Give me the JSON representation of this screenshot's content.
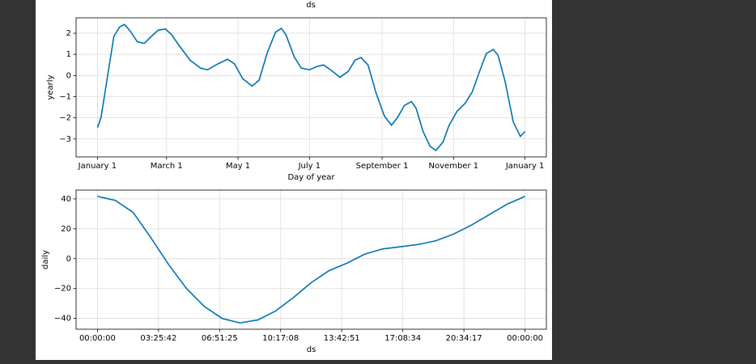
{
  "above": {
    "xlabel": "ds"
  },
  "chart_data": [
    {
      "type": "line",
      "xlabel": "Day of year",
      "ylabel": "yearly",
      "grid": true,
      "color": "#0072b2",
      "x": [
        0,
        3,
        9,
        14,
        19,
        23,
        28,
        34,
        40,
        46,
        52,
        58,
        63,
        70,
        79,
        88,
        94,
        101,
        111,
        117,
        124,
        132,
        138,
        145,
        152,
        157,
        161,
        168,
        174,
        181,
        187,
        193,
        200,
        207,
        214,
        220,
        225,
        231,
        238,
        245,
        251,
        256,
        262,
        268,
        272,
        278,
        284,
        289,
        295,
        300,
        307,
        314,
        320,
        327,
        332,
        338,
        342,
        348,
        355,
        361,
        365
      ],
      "values": [
        -2.46,
        -2.0,
        0.1,
        1.85,
        2.3,
        2.42,
        2.1,
        1.6,
        1.52,
        1.85,
        2.15,
        2.2,
        1.95,
        1.4,
        0.73,
        0.35,
        0.27,
        0.5,
        0.77,
        0.55,
        -0.15,
        -0.5,
        -0.22,
        1.08,
        2.05,
        2.23,
        1.92,
        0.88,
        0.35,
        0.27,
        0.42,
        0.5,
        0.23,
        -0.08,
        0.19,
        0.73,
        0.85,
        0.5,
        -0.85,
        -1.92,
        -2.35,
        -2.0,
        -1.42,
        -1.23,
        -1.54,
        -2.65,
        -3.35,
        -3.54,
        -3.15,
        -2.38,
        -1.69,
        -1.31,
        -0.77,
        0.31,
        1.04,
        1.23,
        0.96,
        -0.27,
        -2.19,
        -2.88,
        -2.65
      ],
      "xlim": [
        -18.25,
        383.25
      ],
      "xticks": [
        {
          "value": 0,
          "label": "January 1"
        },
        {
          "value": 59,
          "label": "March 1"
        },
        {
          "value": 120,
          "label": "May 1"
        },
        {
          "value": 181,
          "label": "July 1"
        },
        {
          "value": 243,
          "label": "September 1"
        },
        {
          "value": 304,
          "label": "November 1"
        },
        {
          "value": 365,
          "label": "January 1"
        }
      ],
      "ylim": [
        -3.85,
        2.73
      ],
      "yticks": [
        {
          "value": -3,
          "label": "−3"
        },
        {
          "value": -2,
          "label": "−2"
        },
        {
          "value": -1,
          "label": "−1"
        },
        0,
        1,
        2
      ]
    },
    {
      "type": "line",
      "xlabel": "ds",
      "ylabel": "daily",
      "grid": true,
      "color": "#0072b2",
      "x": [
        0,
        1,
        2,
        3,
        4,
        5,
        6,
        7,
        8,
        9,
        10,
        11,
        12,
        13,
        14,
        15,
        16,
        17,
        18,
        19,
        20,
        21,
        22,
        23,
        24
      ],
      "values": [
        41.7,
        39,
        31,
        14,
        -4,
        -20,
        -32,
        -40,
        -43,
        -41,
        -35,
        -26,
        -16,
        -8,
        -3,
        3,
        6.5,
        8,
        9.5,
        12,
        16.5,
        22.5,
        29.5,
        36.5,
        41.7
      ],
      "xlim": [
        -1.2,
        25.2
      ],
      "xticks": [
        {
          "value": 0,
          "label": "00:00:00"
        },
        {
          "value": 3.4283,
          "label": "03:25:42"
        },
        {
          "value": 6.8569,
          "label": "06:51:25"
        },
        {
          "value": 10.2856,
          "label": "10:17:08"
        },
        {
          "value": 13.7142,
          "label": "13:42:51"
        },
        {
          "value": 17.1428,
          "label": "17:08:34"
        },
        {
          "value": 20.5714,
          "label": "20:34:17"
        },
        {
          "value": 24,
          "label": "00:00:00"
        }
      ],
      "ylim": [
        -47.2,
        45.9
      ],
      "yticks": [
        {
          "value": -40,
          "label": "−40"
        },
        {
          "value": -20,
          "label": "−20"
        },
        0,
        20,
        40
      ]
    }
  ]
}
